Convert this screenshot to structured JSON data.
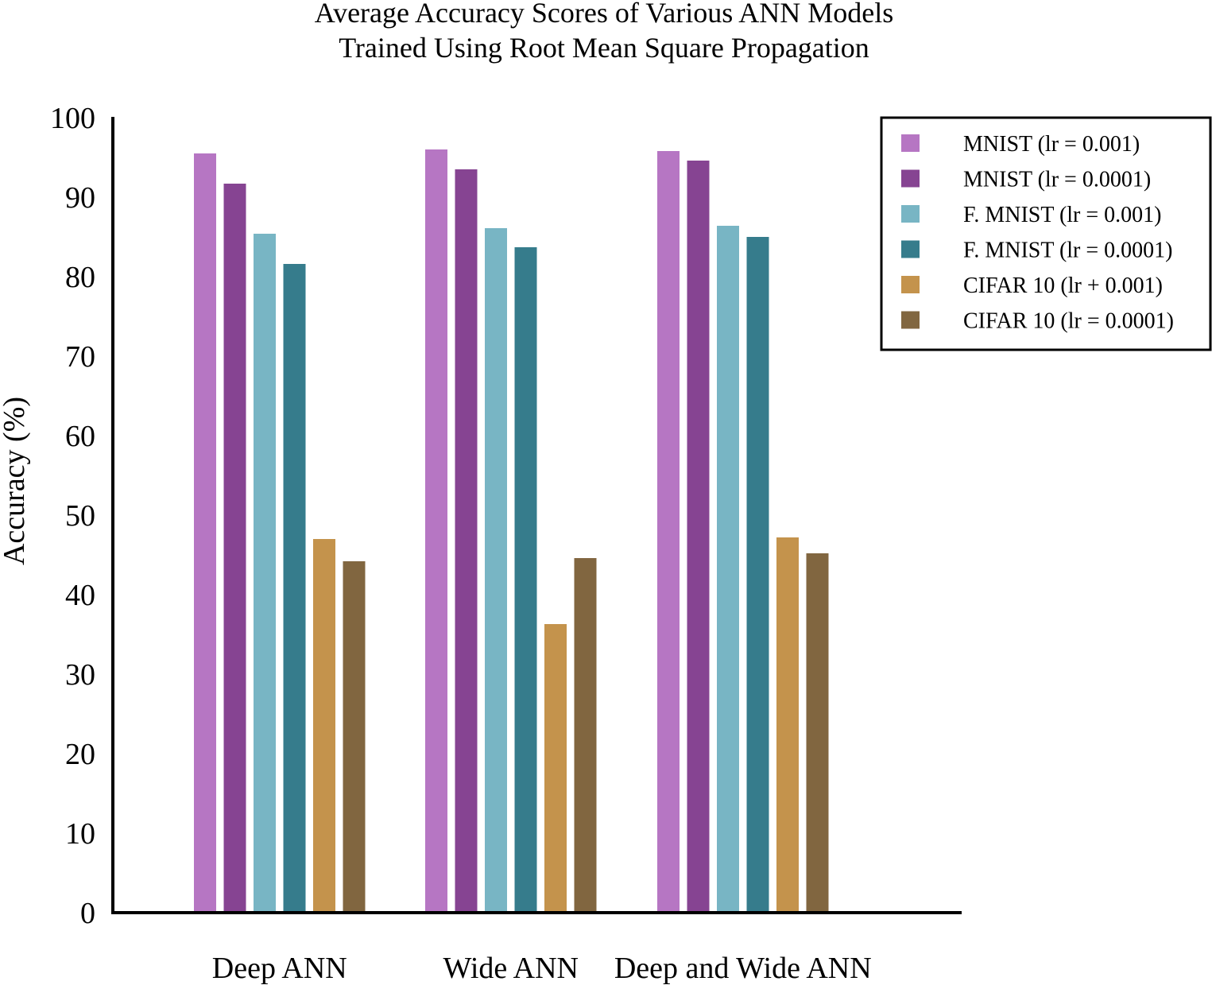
{
  "chart_data": {
    "type": "bar",
    "title": [
      "Average Accuracy Scores of Various ANN Models",
      "Trained Using Root Mean Square Propagation"
    ],
    "xlabel": "",
    "ylabel": "Accuracy (%)",
    "ylim": [
      0,
      100
    ],
    "yticks": [
      "0",
      "10",
      "20",
      "30",
      "40",
      "50",
      "60",
      "70",
      "80",
      "90",
      "100"
    ],
    "grid": false,
    "legend_position": "top-right",
    "categories": [
      "Deep ANN",
      "Wide ANN",
      "Deep and Wide ANN"
    ],
    "series": [
      {
        "name": "MNIST (lr = 0.001)",
        "color": "#b676c3",
        "values": [
          95.5,
          96.0,
          95.8
        ]
      },
      {
        "name": "MNIST (lr = 0.0001)",
        "color": "#864492",
        "values": [
          91.7,
          93.5,
          94.6
        ]
      },
      {
        "name": "F. MNIST (lr = 0.001)",
        "color": "#78b5c4",
        "values": [
          85.4,
          86.1,
          86.4
        ]
      },
      {
        "name": "F. MNIST (lr = 0.0001)",
        "color": "#367c8c",
        "values": [
          81.6,
          83.7,
          85.0
        ]
      },
      {
        "name": "CIFAR 10 (lr + 0.001)",
        "color": "#c4934c",
        "values": [
          47.0,
          36.3,
          47.2
        ]
      },
      {
        "name": "CIFAR 10 (lr = 0.0001)",
        "color": "#816640",
        "values": [
          44.2,
          44.6,
          45.2
        ]
      }
    ]
  }
}
